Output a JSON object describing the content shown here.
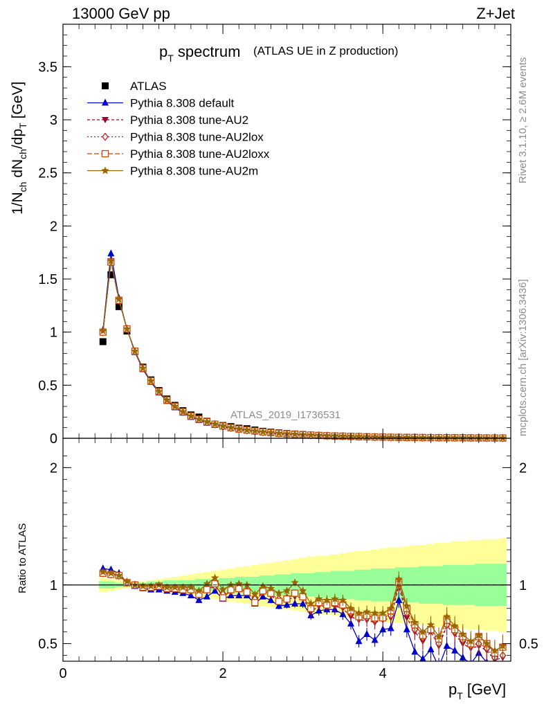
{
  "header": {
    "left": "13000 GeV pp",
    "right": "Z+Jet"
  },
  "title": {
    "main_p": "p",
    "main_sub": "T",
    "main_rest": " spectrum",
    "small": "(ATLAS UE in Z production)"
  },
  "side": {
    "rivet": "Rivet 3.1.10, ≥ 2.6M events",
    "mcplots": "mcplots.cern.ch [arXiv:1306.3436]"
  },
  "watermark": "ATLAS_2019_I1736531",
  "axes": {
    "ylabel_main": "1/N",
    "ylabel_sub1": "ch",
    "ylabel_mid": " dN",
    "ylabel_sub2": "ch",
    "ylabel_mid2": "/dp",
    "ylabel_sub3": "T",
    "ylabel_unit": " [GeV]",
    "ylabel_ratio": "Ratio to ATLAS",
    "xlabel_p": "p",
    "xlabel_sub": "T",
    "xlabel_unit": " [GeV]"
  },
  "colors": {
    "atlas": "#000000",
    "default": "#0000cc",
    "au2": "#990033",
    "au2lox": "#b22222",
    "au2loxx": "#cc4400",
    "au2m": "#996600",
    "band_inner": "#99ff99",
    "band_outer": "#ffff99"
  },
  "chart_data": {
    "type": "scatter",
    "x": [
      0.5,
      0.6,
      0.7,
      0.8,
      0.9,
      1.0,
      1.1,
      1.2,
      1.3,
      1.4,
      1.5,
      1.6,
      1.7,
      1.8,
      1.9,
      2.0,
      2.1,
      2.2,
      2.3,
      2.4,
      2.5,
      2.6,
      2.7,
      2.8,
      2.9,
      3.0,
      3.1,
      3.2,
      3.3,
      3.4,
      3.5,
      3.6,
      3.7,
      3.8,
      3.9,
      4.0,
      4.1,
      4.2,
      4.3,
      4.4,
      4.5,
      4.6,
      4.7,
      4.8,
      4.9,
      5.0,
      5.1,
      5.2,
      5.3,
      5.4,
      5.5
    ],
    "main_ylim": [
      0,
      3.9
    ],
    "main_yticks": [
      "0",
      "0.5",
      "1",
      "1.5",
      "2",
      "2.5",
      "3",
      "3.5"
    ],
    "ratio_ylim": [
      0.35,
      2.25
    ],
    "ratio_yticks": [
      "0.5",
      "1",
      "2"
    ],
    "xlim": [
      0,
      5.6
    ],
    "xticks": [
      "0",
      "2",
      "4"
    ],
    "series": [
      {
        "name": "ATLAS",
        "marker": "square",
        "dash": "",
        "key": "atlas",
        "values": [
          0.91,
          1.54,
          1.24,
          1.01,
          0.82,
          0.67,
          0.55,
          0.45,
          0.37,
          0.31,
          0.26,
          0.22,
          0.2,
          0.16,
          0.13,
          0.12,
          0.11,
          0.095,
          0.09,
          0.078,
          0.066,
          0.058,
          0.051,
          0.045,
          0.04,
          0.035,
          0.03,
          0.026,
          0.023,
          0.021,
          0.019,
          0.017,
          0.015,
          0.013,
          0.012,
          0.011,
          0.01,
          0.009,
          0.008,
          0.0075,
          0.007,
          0.0065,
          0.006,
          0.0055,
          0.005,
          0.0045,
          0.004,
          0.0038,
          0.0035,
          0.0032,
          0.003
        ]
      },
      {
        "name": "Pythia 8.308 default",
        "marker": "triangle",
        "dash": "",
        "key": "default",
        "values": [
          1.02,
          1.74,
          1.32,
          1.03,
          0.81,
          0.65,
          0.53,
          0.43,
          0.35,
          0.29,
          0.24,
          0.2,
          0.17,
          0.145,
          0.125,
          0.108,
          0.094,
          0.082,
          0.072,
          0.063,
          0.055,
          0.048,
          0.042,
          0.037,
          0.033,
          0.029,
          0.026,
          0.023,
          0.02,
          0.018,
          0.016,
          0.014,
          0.012,
          0.011,
          0.0095,
          0.0085,
          0.0075,
          0.0068,
          0.006,
          0.0054,
          0.0048,
          0.0043,
          0.0039,
          0.0035,
          0.0031,
          0.0028,
          0.0025,
          0.0022,
          0.002,
          0.0018,
          0.0016
        ]
      },
      {
        "name": "Pythia 8.308 tune-AU2",
        "marker": "triangle-down",
        "dash": "4,3",
        "key": "au2",
        "values": [
          1.0,
          1.67,
          1.3,
          1.03,
          0.82,
          0.66,
          0.54,
          0.44,
          0.36,
          0.3,
          0.25,
          0.21,
          0.18,
          0.153,
          0.131,
          0.113,
          0.098,
          0.085,
          0.075,
          0.066,
          0.058,
          0.051,
          0.045,
          0.04,
          0.035,
          0.031,
          0.028,
          0.025,
          0.022,
          0.02,
          0.018,
          0.016,
          0.014,
          0.012,
          0.011,
          0.0097,
          0.0087,
          0.0078,
          0.007,
          0.0063,
          0.0057,
          0.0051,
          0.0046,
          0.0041,
          0.0037,
          0.0034,
          0.003,
          0.0027,
          0.0025,
          0.0022,
          0.002
        ]
      },
      {
        "name": "Pythia 8.308 tune-AU2lox",
        "marker": "diamond",
        "dash": "2,3",
        "key": "au2lox",
        "values": [
          1.0,
          1.66,
          1.3,
          1.03,
          0.82,
          0.66,
          0.54,
          0.44,
          0.36,
          0.3,
          0.25,
          0.21,
          0.18,
          0.154,
          0.132,
          0.114,
          0.099,
          0.086,
          0.076,
          0.067,
          0.059,
          0.052,
          0.046,
          0.041,
          0.036,
          0.032,
          0.029,
          0.026,
          0.023,
          0.021,
          0.019,
          0.017,
          0.015,
          0.013,
          0.0115,
          0.0102,
          0.0091,
          0.0082,
          0.0074,
          0.0066,
          0.006,
          0.0054,
          0.0049,
          0.0044,
          0.004,
          0.0036,
          0.0032,
          0.0029,
          0.0026,
          0.0024,
          0.0022
        ]
      },
      {
        "name": "Pythia 8.308 tune-AU2loxx",
        "marker": "square-open",
        "dash": "7,3",
        "key": "au2loxx",
        "values": [
          1.0,
          1.66,
          1.3,
          1.03,
          0.82,
          0.66,
          0.54,
          0.44,
          0.36,
          0.3,
          0.25,
          0.21,
          0.18,
          0.155,
          0.133,
          0.115,
          0.1,
          0.087,
          0.077,
          0.068,
          0.06,
          0.053,
          0.047,
          0.042,
          0.037,
          0.033,
          0.03,
          0.027,
          0.024,
          0.022,
          0.02,
          0.018,
          0.016,
          0.014,
          0.012,
          0.011,
          0.0097,
          0.0087,
          0.0078,
          0.007,
          0.0063,
          0.0057,
          0.0051,
          0.0046,
          0.0042,
          0.0038,
          0.0034,
          0.0031,
          0.0028,
          0.0025,
          0.0023
        ]
      },
      {
        "name": "Pythia 8.308 tune-AU2m",
        "marker": "star",
        "dash": "",
        "key": "au2m",
        "values": [
          1.01,
          1.67,
          1.31,
          1.03,
          0.82,
          0.66,
          0.54,
          0.44,
          0.36,
          0.3,
          0.25,
          0.21,
          0.18,
          0.155,
          0.134,
          0.116,
          0.101,
          0.088,
          0.078,
          0.069,
          0.061,
          0.054,
          0.048,
          0.043,
          0.038,
          0.034,
          0.031,
          0.028,
          0.025,
          0.023,
          0.021,
          0.019,
          0.017,
          0.015,
          0.013,
          0.012,
          0.0105,
          0.0094,
          0.0085,
          0.0076,
          0.0068,
          0.0061,
          0.0055,
          0.005,
          0.0045,
          0.0041,
          0.0037,
          0.0033,
          0.003,
          0.0027,
          0.0025
        ]
      }
    ],
    "ratio_series": [
      {
        "key": "default",
        "values": [
          1.14,
          1.13,
          1.1,
          1.02,
          0.99,
          0.97,
          0.96,
          0.96,
          0.95,
          0.94,
          0.93,
          0.91,
          0.87,
          0.9,
          0.95,
          0.88,
          0.91,
          0.91,
          0.91,
          0.84,
          0.9,
          0.87,
          0.82,
          0.83,
          0.84,
          0.84,
          0.74,
          0.78,
          0.79,
          0.79,
          0.75,
          0.67,
          0.52,
          0.58,
          0.53,
          0.62,
          0.63,
          0.87,
          0.62,
          0.43,
          0.37,
          0.45,
          0.3,
          0.48,
          0.44,
          0.38,
          0.33,
          0.42,
          0.34,
          0.25,
          0.3
        ]
      },
      {
        "key": "au2",
        "values": [
          1.1,
          1.09,
          1.08,
          1.02,
          1.0,
          0.98,
          0.98,
          0.98,
          0.97,
          0.97,
          0.96,
          0.95,
          0.91,
          0.95,
          0.99,
          0.91,
          0.94,
          0.96,
          0.94,
          0.87,
          0.93,
          0.91,
          0.86,
          0.87,
          0.9,
          0.89,
          0.77,
          0.82,
          0.82,
          0.82,
          0.8,
          0.73,
          0.7,
          0.7,
          0.68,
          0.7,
          0.72,
          1.0,
          0.72,
          0.6,
          0.52,
          0.6,
          0.48,
          0.65,
          0.58,
          0.5,
          0.46,
          0.48,
          0.44,
          0.36,
          0.38
        ]
      },
      {
        "key": "au2lox",
        "values": [
          1.1,
          1.09,
          1.08,
          1.02,
          1.0,
          0.98,
          0.98,
          0.99,
          0.97,
          0.97,
          0.96,
          0.95,
          0.92,
          0.96,
          0.99,
          0.92,
          0.95,
          0.97,
          0.95,
          0.88,
          0.94,
          0.92,
          0.88,
          0.89,
          0.92,
          0.91,
          0.79,
          0.84,
          0.84,
          0.84,
          0.82,
          0.76,
          0.72,
          0.72,
          0.7,
          0.72,
          0.74,
          1.02,
          0.76,
          0.62,
          0.55,
          0.63,
          0.5,
          0.66,
          0.6,
          0.53,
          0.48,
          0.5,
          0.46,
          0.38,
          0.4
        ]
      },
      {
        "key": "au2loxx",
        "values": [
          1.1,
          1.09,
          1.08,
          1.02,
          1.0,
          0.98,
          0.98,
          0.99,
          0.97,
          0.97,
          0.96,
          0.96,
          0.92,
          0.96,
          1.01,
          0.89,
          0.96,
          0.97,
          0.94,
          0.85,
          0.95,
          0.93,
          0.86,
          0.88,
          0.93,
          0.9,
          0.8,
          0.85,
          0.83,
          0.85,
          0.83,
          0.78,
          0.73,
          0.74,
          0.72,
          0.72,
          0.78,
          1.02,
          0.8,
          0.66,
          0.57,
          0.62,
          0.54,
          0.7,
          0.62,
          0.56,
          0.5,
          0.56,
          0.5,
          0.42,
          0.47
        ]
      },
      {
        "key": "au2m",
        "values": [
          1.11,
          1.1,
          1.08,
          1.03,
          1.0,
          0.99,
          0.99,
          1.0,
          0.98,
          0.98,
          0.98,
          0.98,
          0.95,
          1.01,
          1.06,
          0.96,
          1.0,
          1.01,
          1.0,
          0.92,
          0.99,
          0.97,
          0.93,
          0.95,
          1.02,
          0.95,
          0.84,
          0.88,
          0.87,
          0.88,
          0.87,
          0.8,
          0.76,
          0.77,
          0.76,
          0.76,
          0.8,
          1.05,
          0.82,
          0.68,
          0.6,
          0.66,
          0.56,
          0.73,
          0.65,
          0.58,
          0.52,
          0.57,
          0.5,
          0.44,
          0.48
        ]
      }
    ],
    "ratio_band": {
      "inner_lo": [
        0.97,
        0.97,
        0.98,
        0.98,
        0.98,
        0.98,
        0.97,
        0.97,
        0.96,
        0.96,
        0.96,
        0.96,
        0.95,
        0.95,
        0.95,
        0.94,
        0.94,
        0.93,
        0.93,
        0.93,
        0.92,
        0.92,
        0.91,
        0.91,
        0.9,
        0.9,
        0.9,
        0.89,
        0.89,
        0.88,
        0.88,
        0.88,
        0.87,
        0.87,
        0.86,
        0.86,
        0.86,
        0.85,
        0.85,
        0.85,
        0.84,
        0.84,
        0.84,
        0.83,
        0.83,
        0.83,
        0.83,
        0.82,
        0.82,
        0.82,
        0.82
      ],
      "inner_hi": [
        1.03,
        1.03,
        1.02,
        1.02,
        1.02,
        1.02,
        1.03,
        1.03,
        1.04,
        1.04,
        1.04,
        1.04,
        1.05,
        1.05,
        1.05,
        1.06,
        1.06,
        1.07,
        1.07,
        1.07,
        1.08,
        1.08,
        1.09,
        1.09,
        1.1,
        1.1,
        1.1,
        1.11,
        1.11,
        1.12,
        1.12,
        1.12,
        1.13,
        1.13,
        1.14,
        1.14,
        1.14,
        1.15,
        1.15,
        1.15,
        1.16,
        1.16,
        1.16,
        1.17,
        1.17,
        1.17,
        1.17,
        1.18,
        1.18,
        1.18,
        1.18
      ],
      "outer_lo": [
        0.94,
        0.95,
        0.96,
        0.97,
        0.97,
        0.97,
        0.96,
        0.95,
        0.94,
        0.93,
        0.92,
        0.91,
        0.9,
        0.89,
        0.88,
        0.87,
        0.86,
        0.85,
        0.84,
        0.83,
        0.82,
        0.81,
        0.8,
        0.79,
        0.78,
        0.77,
        0.76,
        0.75,
        0.75,
        0.74,
        0.73,
        0.72,
        0.71,
        0.71,
        0.7,
        0.69,
        0.68,
        0.68,
        0.67,
        0.66,
        0.66,
        0.65,
        0.64,
        0.64,
        0.63,
        0.63,
        0.62,
        0.62,
        0.61,
        0.61,
        0.6
      ],
      "outer_hi": [
        1.06,
        1.05,
        1.04,
        1.03,
        1.03,
        1.03,
        1.04,
        1.05,
        1.06,
        1.07,
        1.08,
        1.09,
        1.1,
        1.11,
        1.12,
        1.13,
        1.14,
        1.15,
        1.16,
        1.17,
        1.18,
        1.19,
        1.2,
        1.21,
        1.22,
        1.23,
        1.24,
        1.25,
        1.25,
        1.26,
        1.27,
        1.28,
        1.29,
        1.29,
        1.3,
        1.31,
        1.32,
        1.32,
        1.33,
        1.34,
        1.34,
        1.35,
        1.36,
        1.36,
        1.37,
        1.37,
        1.38,
        1.38,
        1.39,
        1.39,
        1.4
      ]
    }
  }
}
